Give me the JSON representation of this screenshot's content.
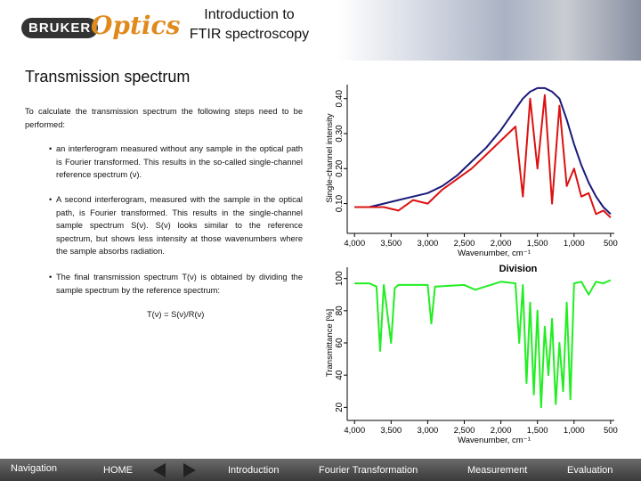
{
  "header": {
    "logo": [
      "BRUKER",
      "Optics"
    ],
    "title": [
      "Introduction to",
      "FTIR spectroscopy"
    ]
  },
  "section_title": "Transmission spectrum",
  "body": {
    "intro": "To calculate the transmission spectrum the following steps need to be performed:",
    "bullets": [
      "an interferogram measured without any sample in the optical path is Fourier transformed. This results in the so-called single-channel reference spectrum (ν).",
      "A second interferogram, measured with the sample in the optical path, is Fourier transformed. This results in the single-channel sample spectrum S(ν). S(ν) looks similar to the reference spectrum, but shows less intensity at those wavenumbers where the sample absorbs radiation.",
      "The final transmission spectrum T(ν) is obtained by dividing the sample spectrum by the reference spectrum:"
    ],
    "formula": "T(ν) = S(ν)/R(ν)"
  },
  "chart_data": [
    {
      "type": "line",
      "ylabel": "Single-channel intensity",
      "xlabel": "Wavenumber, cm⁻¹",
      "x": [
        4000,
        3800,
        3600,
        3400,
        3200,
        3000,
        2800,
        2600,
        2400,
        2200,
        2000,
        1900,
        1800,
        1700,
        1600,
        1500,
        1400,
        1300,
        1200,
        1100,
        1000,
        900,
        800,
        700,
        600,
        500
      ],
      "series": [
        {
          "color": "#1a1a7a",
          "values": [
            0.09,
            0.09,
            0.1,
            0.11,
            0.12,
            0.13,
            0.15,
            0.18,
            0.22,
            0.26,
            0.31,
            0.34,
            0.37,
            0.4,
            0.42,
            0.43,
            0.43,
            0.42,
            0.4,
            0.34,
            0.27,
            0.21,
            0.16,
            0.12,
            0.09,
            0.07
          ]
        },
        {
          "color": "#dd1111",
          "values": [
            0.09,
            0.09,
            0.09,
            0.08,
            0.11,
            0.1,
            0.14,
            0.17,
            0.2,
            0.24,
            0.28,
            0.3,
            0.32,
            0.12,
            0.4,
            0.2,
            0.41,
            0.1,
            0.38,
            0.15,
            0.2,
            0.12,
            0.13,
            0.07,
            0.08,
            0.06
          ]
        }
      ],
      "xlim": [
        4100,
        450
      ],
      "ylim": [
        0.02,
        0.44
      ],
      "xticks": [
        {
          "value": 4000,
          "label": "4,000"
        },
        {
          "value": 3500,
          "label": "3,500"
        },
        {
          "value": 3000,
          "label": "3,000"
        },
        {
          "value": 2500,
          "label": "2,500"
        },
        {
          "value": 2000,
          "label": "2,000"
        },
        {
          "value": 1500,
          "label": "1,500"
        },
        {
          "value": 1000,
          "label": "1,000"
        },
        500
      ],
      "yticks": [
        {
          "value": 0.1,
          "label": "0.10"
        },
        {
          "value": 0.2,
          "label": "0.20"
        },
        {
          "value": 0.3,
          "label": "0.30"
        },
        {
          "value": 0.4,
          "label": "0.40"
        }
      ]
    },
    {
      "type": "line",
      "title": "Division",
      "ylabel": "Transmittance [%]",
      "xlabel": "Wavenumber, cm⁻¹",
      "x": [
        4000,
        3800,
        3700,
        3650,
        3600,
        3500,
        3450,
        3400,
        3000,
        2950,
        2900,
        2500,
        2350,
        2000,
        1800,
        1750,
        1700,
        1650,
        1600,
        1550,
        1500,
        1450,
        1400,
        1350,
        1300,
        1250,
        1200,
        1150,
        1100,
        1050,
        1000,
        900,
        800,
        700,
        600,
        500
      ],
      "series": [
        {
          "color": "#22ee22",
          "values": [
            97,
            97,
            95,
            55,
            96,
            60,
            94,
            96,
            96,
            72,
            95,
            96,
            93,
            98,
            97,
            60,
            96,
            35,
            85,
            28,
            80,
            20,
            70,
            40,
            75,
            22,
            60,
            30,
            85,
            25,
            97,
            98,
            90,
            98,
            97,
            99
          ]
        }
      ],
      "xlim": [
        4100,
        450
      ],
      "ylim": [
        13,
        107
      ],
      "xticks": [
        {
          "value": 4000,
          "label": "4,000"
        },
        {
          "value": 3500,
          "label": "3,500"
        },
        {
          "value": 3000,
          "label": "3,000"
        },
        {
          "value": 2500,
          "label": "2,500"
        },
        {
          "value": 2000,
          "label": "2,000"
        },
        {
          "value": 1500,
          "label": "1,500"
        },
        {
          "value": 1000,
          "label": "1,000"
        },
        500
      ],
      "yticks": [
        20,
        40,
        60,
        80,
        100
      ]
    }
  ],
  "nav": {
    "label": "Navigation",
    "items": [
      "HOME",
      "Introduction",
      "Fourier Transformation",
      "Measurement",
      "Evaluation"
    ]
  }
}
